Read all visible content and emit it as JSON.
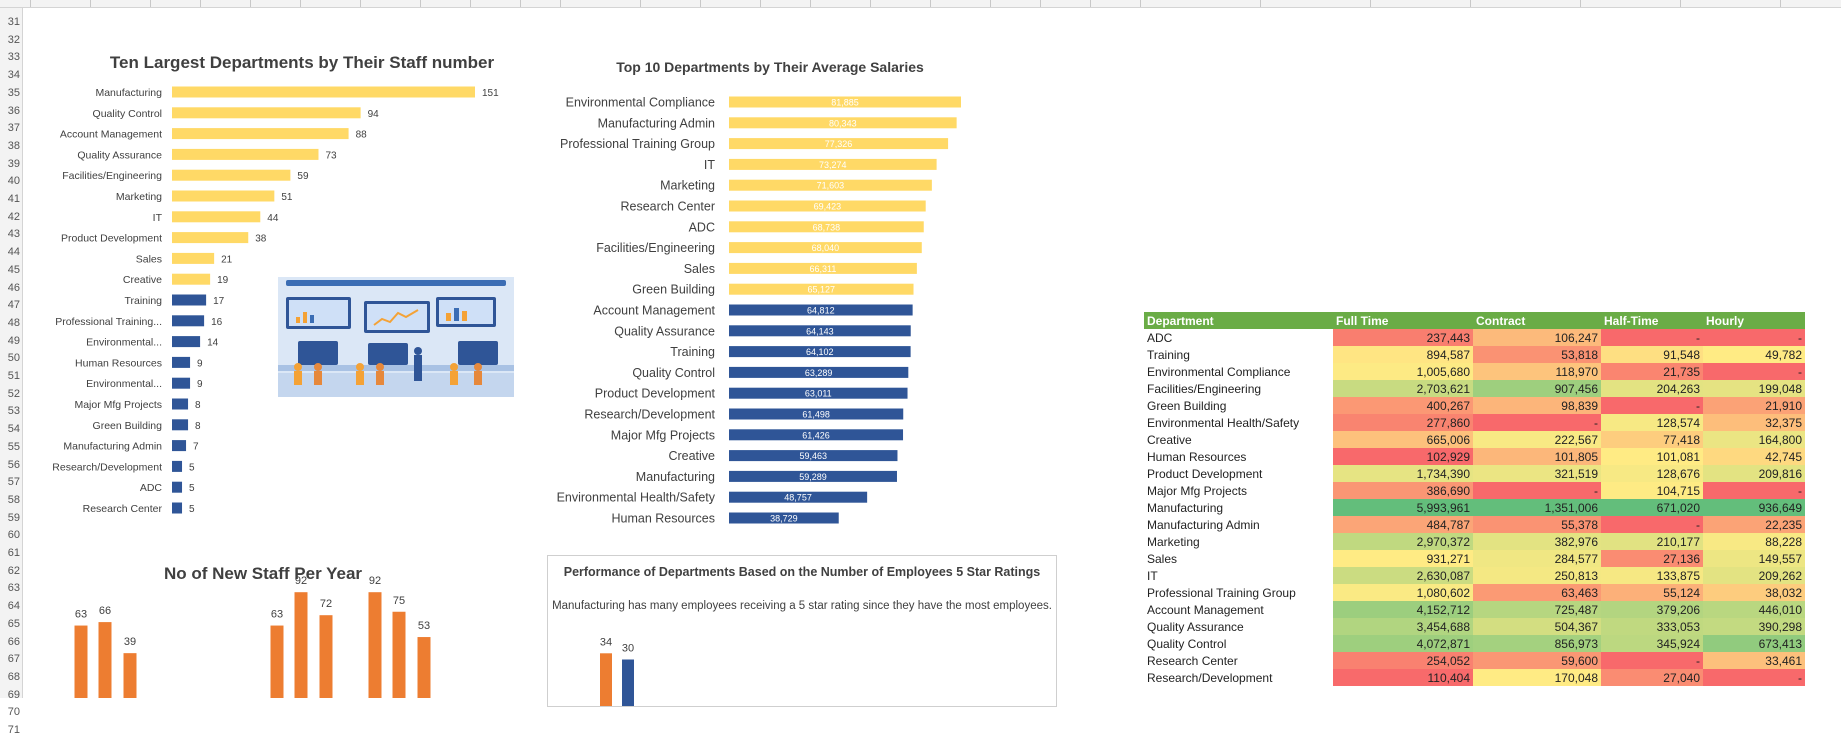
{
  "sheet": {
    "row_numbers": [
      "31",
      "32",
      "33",
      "34",
      "35",
      "36",
      "37",
      "38",
      "39",
      "40",
      "41",
      "42",
      "43",
      "44",
      "45",
      "46",
      "47",
      "48",
      "49",
      "50",
      "51",
      "52",
      "53",
      "54",
      "55",
      "56",
      "57",
      "58",
      "59",
      "60",
      "61",
      "62",
      "63",
      "64",
      "65",
      "66",
      "67",
      "68",
      "69",
      "70",
      "71"
    ]
  },
  "illustration": {
    "icon": "office-team-illustration"
  },
  "chart_data": [
    {
      "type": "bar",
      "orientation": "horizontal",
      "title": "Ten Largest Departments by Their Staff number",
      "categories": [
        "Manufacturing",
        "Quality Control",
        "Account Management",
        "Quality Assurance",
        "Facilities/Engineering",
        "Marketing",
        "IT",
        "Product Development",
        "Sales",
        "Creative",
        "Training",
        "Professional Training...",
        "Environmental...",
        "Human Resources",
        "Environmental...",
        "Major Mfg Projects",
        "Green Building",
        "Manufacturing Admin",
        "Research/Development",
        "ADC",
        "Research Center"
      ],
      "values": [
        151,
        94,
        88,
        73,
        59,
        51,
        44,
        38,
        21,
        19,
        17,
        16,
        14,
        9,
        9,
        8,
        8,
        7,
        5,
        5,
        5
      ],
      "colors": {
        "top": "#ffd966",
        "rest": "#2f5597"
      },
      "highlight_count": 10
    },
    {
      "type": "bar",
      "orientation": "horizontal",
      "title": "Top 10 Departments by Their Average Salaries",
      "categories": [
        "Environmental Compliance",
        "Manufacturing Admin",
        "Professional Training Group",
        "IT",
        "Marketing",
        "Research Center",
        "ADC",
        "Facilities/Engineering",
        "Sales",
        "Green Building",
        "Account Management",
        "Quality Assurance",
        "Training",
        "Quality Control",
        "Product Development",
        "Research/Development",
        "Major Mfg Projects",
        "Creative",
        "Manufacturing",
        "Environmental Health/Safety",
        "Human Resources"
      ],
      "values": [
        81885,
        80343,
        77326,
        73274,
        71603,
        69423,
        68738,
        68040,
        66311,
        65127,
        64812,
        64143,
        64102,
        63289,
        63011,
        61498,
        61426,
        59463,
        59289,
        48757,
        38729
      ],
      "labels": [
        "81,885",
        "80,343",
        "77,326",
        "73,274",
        "71,603",
        "69,423",
        "68,738",
        "68,040",
        "66,311",
        "65,127",
        "64,812",
        "64,143",
        "64,102",
        "63,289",
        "63,011",
        "61,498",
        "61,426",
        "59,463",
        "59,289",
        "48,757",
        "38,729"
      ],
      "colors": {
        "top": "#ffd966",
        "rest": "#2f5597"
      },
      "highlight_count": 10
    },
    {
      "type": "bar",
      "title": "No of New Staff Per Year",
      "values_visible": [
        63,
        66,
        39,
        null,
        null,
        null,
        63,
        92,
        72,
        null,
        92,
        75,
        53
      ],
      "color": "#ed7d31"
    },
    {
      "type": "bar",
      "title": "Performance of Departments Based on the Number of Employees 5 Star Ratings",
      "subtitle": "Manufacturing has many employees receiving a 5 star rating since they have the most employees.",
      "series": [
        {
          "values": [
            34
          ],
          "color": "#ed7d31"
        },
        {
          "values": [
            30
          ],
          "color": "#2f5597"
        }
      ]
    },
    {
      "type": "table",
      "columns": [
        "Department",
        "Full Time",
        "Contract",
        "Half-Time",
        "Hourly"
      ],
      "rows": [
        [
          "ADC",
          "237,443",
          "106,247",
          "-",
          "-"
        ],
        [
          "Training",
          "894,587",
          "53,818",
          "91,548",
          "49,782"
        ],
        [
          "Environmental Compliance",
          "1,005,680",
          "118,970",
          "21,735",
          "-"
        ],
        [
          "Facilities/Engineering",
          "2,703,621",
          "907,456",
          "204,263",
          "199,048"
        ],
        [
          "Green Building",
          "400,267",
          "98,839",
          "-",
          "21,910"
        ],
        [
          "Environmental Health/Safety",
          "277,860",
          "-",
          "128,574",
          "32,375"
        ],
        [
          "Creative",
          "665,006",
          "222,567",
          "77,418",
          "164,800"
        ],
        [
          "Human Resources",
          "102,929",
          "101,805",
          "101,081",
          "42,745"
        ],
        [
          "Product Development",
          "1,734,390",
          "321,519",
          "128,676",
          "209,816"
        ],
        [
          "Major Mfg Projects",
          "386,690",
          "-",
          "104,715",
          "-"
        ],
        [
          "Manufacturing",
          "5,993,961",
          "1,351,006",
          "671,020",
          "936,649"
        ],
        [
          "Manufacturing Admin",
          "484,787",
          "55,378",
          "-",
          "22,235"
        ],
        [
          "Marketing",
          "2,970,372",
          "382,976",
          "210,177",
          "88,228"
        ],
        [
          "Sales",
          "931,271",
          "284,577",
          "27,136",
          "149,557"
        ],
        [
          "IT",
          "2,630,087",
          "250,813",
          "133,875",
          "209,262"
        ],
        [
          "Professional Training Group",
          "1,080,602",
          "63,463",
          "55,124",
          "38,032"
        ],
        [
          "Account Management",
          "4,152,712",
          "725,487",
          "379,206",
          "446,010"
        ],
        [
          "Quality Assurance",
          "3,454,688",
          "504,367",
          "333,053",
          "390,298"
        ],
        [
          "Quality Control",
          "4,072,871",
          "856,973",
          "345,924",
          "673,413"
        ],
        [
          "Research Center",
          "254,052",
          "59,600",
          "-",
          "33,461"
        ],
        [
          "Research/Development",
          "110,404",
          "170,048",
          "27,040",
          "-"
        ]
      ],
      "header_color": "#6aac46",
      "scale_colors": {
        "low": "#f8696b",
        "mid": "#ffeb84",
        "high": "#63be7b"
      }
    }
  ]
}
